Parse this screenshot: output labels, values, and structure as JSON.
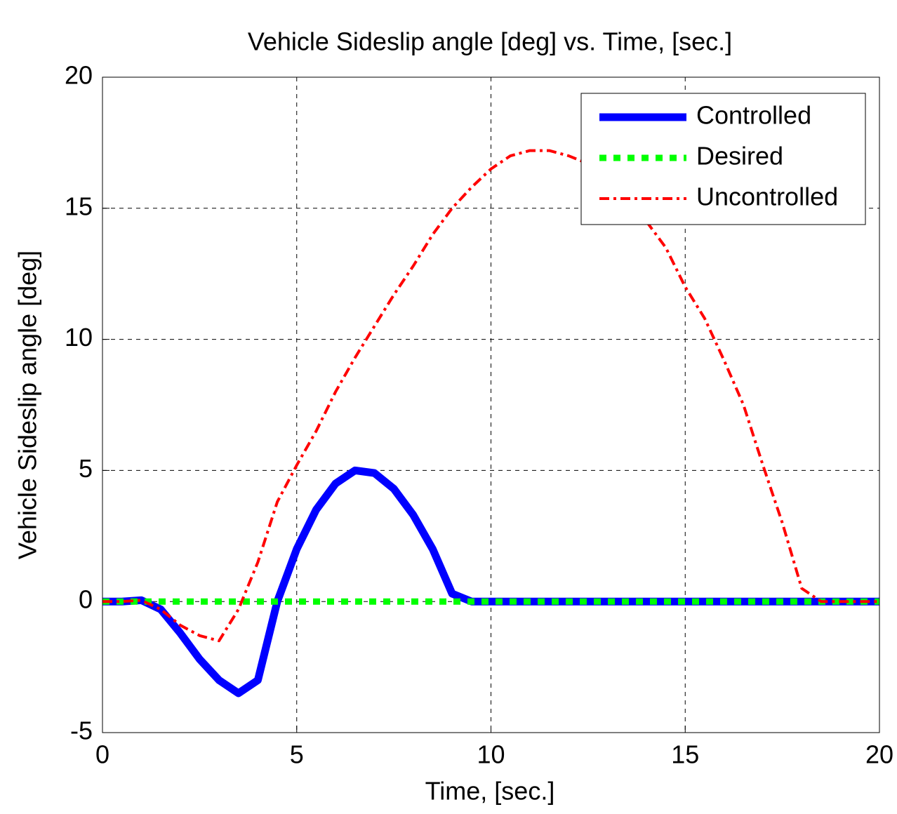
{
  "chart_data": {
    "type": "line",
    "title": "Vehicle Sideslip angle [deg] vs. Time, [sec.]",
    "x_label": "Time, [sec.]",
    "y_label": "Vehicle Sideslip angle [deg]",
    "x": [
      0,
      0.5,
      1,
      1.5,
      2,
      2.5,
      3,
      3.5,
      4,
      4.5,
      5,
      5.5,
      6,
      6.5,
      7,
      7.5,
      8,
      8.5,
      9,
      9.5,
      10,
      10.5,
      11,
      11.5,
      12,
      12.5,
      13,
      13.5,
      14,
      14.5,
      15,
      15.5,
      16,
      16.5,
      17,
      17.5,
      18,
      18.5,
      19,
      19.5,
      20
    ],
    "series": [
      {
        "name": "Controlled",
        "color": "#0000ff",
        "style": "solid",
        "values": [
          0,
          0,
          0.05,
          -0.3,
          -1.2,
          -2.2,
          -3.0,
          -3.5,
          -3.0,
          0,
          2.0,
          3.5,
          4.5,
          5.0,
          4.9,
          4.3,
          3.3,
          2.0,
          0.3,
          0,
          0,
          0,
          0,
          0,
          0,
          0,
          0,
          0,
          0,
          0,
          0,
          0,
          0,
          0,
          0,
          0,
          0,
          0,
          0,
          0,
          0
        ]
      },
      {
        "name": "Desired",
        "color": "#00ff00",
        "style": "dotted",
        "values": [
          0,
          0,
          0,
          0,
          0,
          0,
          0,
          0,
          0,
          0,
          0,
          0,
          0,
          0,
          0,
          0,
          0,
          0,
          0,
          0,
          0,
          0,
          0,
          0,
          0,
          0,
          0,
          0,
          0,
          0,
          0,
          0,
          0,
          0,
          0,
          0,
          0,
          0,
          0,
          0,
          0
        ]
      },
      {
        "name": "Uncontrolled",
        "color": "#ff0000",
        "style": "dashdot",
        "values": [
          0,
          0,
          0.05,
          -0.3,
          -0.9,
          -1.3,
          -1.5,
          -0.3,
          1.5,
          3.8,
          5.2,
          6.5,
          8.0,
          9.3,
          10.5,
          11.7,
          12.8,
          14.0,
          15.0,
          15.8,
          16.5,
          17.0,
          17.2,
          17.2,
          17.0,
          16.7,
          16.2,
          15.5,
          14.5,
          13.5,
          12.0,
          10.8,
          9.2,
          7.5,
          5.2,
          3.0,
          0.5,
          0,
          0,
          0,
          0
        ]
      }
    ],
    "xlim": [
      0,
      20
    ],
    "xticks": [
      0,
      5,
      10,
      15,
      20
    ],
    "ylim": [
      -5,
      20
    ],
    "yticks": [
      -5,
      0,
      5,
      10,
      15,
      20
    ],
    "grid": true,
    "legend": "northeast"
  }
}
